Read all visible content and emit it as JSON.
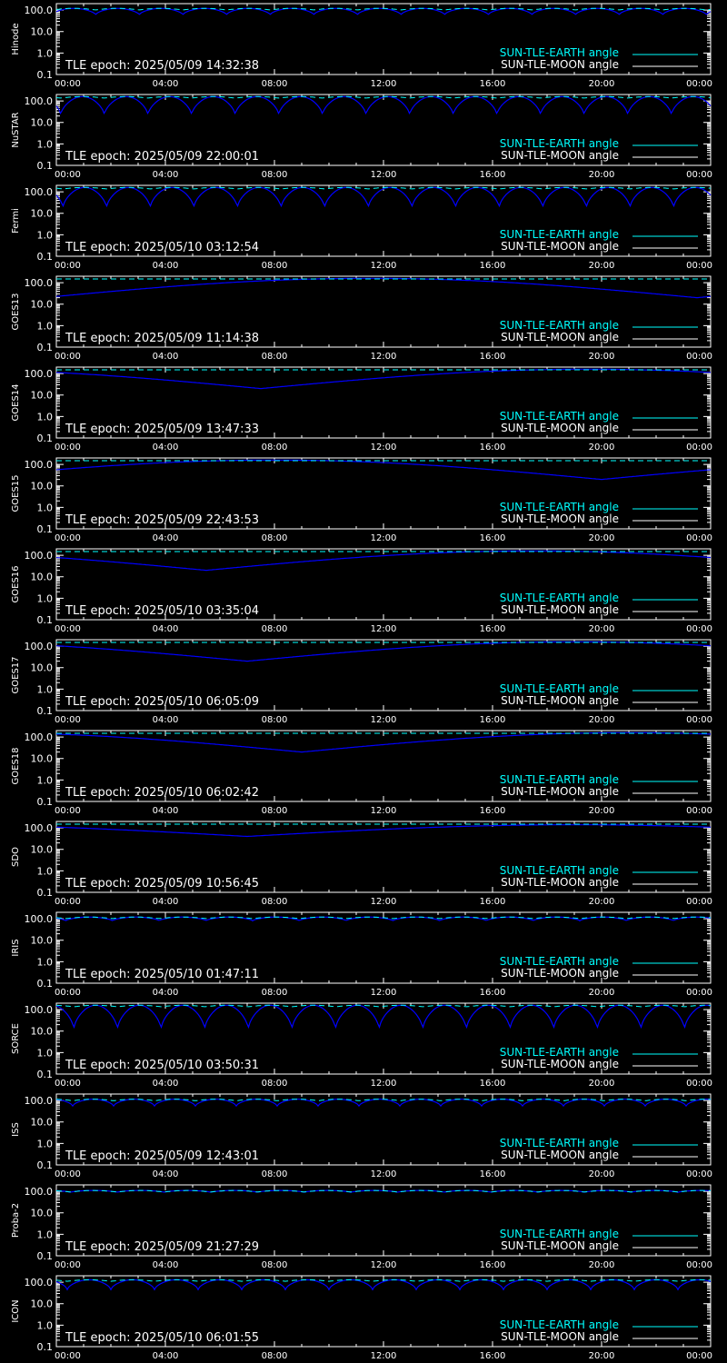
{
  "colors": {
    "background": "#000000",
    "axes": "#ffffff",
    "sun_earth": "#00ffff",
    "sun_moon": "#ffffff",
    "sep_curve": "#0000ff"
  },
  "legend": {
    "sun_earth_label": "SUN-TLE-EARTH angle",
    "sun_moon_label": "SUN-TLE-MOON angle"
  },
  "chart_data": [
    {
      "type": "line",
      "ylabel": "Hinode",
      "epoch": "TLE epoch: 2025/05/09 14:32:38",
      "ylim": [
        0.1,
        200
      ],
      "yscale": "log",
      "x_range_hours": [
        0,
        24
      ],
      "dips": {
        "count": 15,
        "min": 60,
        "max": 120,
        "phase": 0.6
      }
    },
    {
      "type": "line",
      "ylabel": "NuSTAR",
      "epoch": "TLE epoch: 2025/05/09 22:00:01",
      "ylim": [
        0.1,
        200
      ],
      "yscale": "log",
      "x_range_hours": [
        0,
        24
      ],
      "dips": {
        "count": 15,
        "min": 22,
        "max": 160,
        "phase": 0.4
      }
    },
    {
      "type": "line",
      "ylabel": "Fermi",
      "epoch": "TLE epoch: 2025/05/10 03:12:54",
      "ylim": [
        0.1,
        200
      ],
      "yscale": "log",
      "x_range_hours": [
        0,
        24
      ],
      "dips": {
        "count": 15,
        "min": 18,
        "max": 160,
        "phase": 0.35
      }
    },
    {
      "type": "line",
      "ylabel": "GOES13",
      "epoch": "TLE epoch: 2025/05/09 11:14:38",
      "ylim": [
        0.1,
        200
      ],
      "yscale": "log",
      "x_range_hours": [
        0,
        24
      ],
      "geo": {
        "min": 20,
        "max": 160,
        "peak_hour": 11.5
      }
    },
    {
      "type": "line",
      "ylabel": "GOES14",
      "epoch": "TLE epoch: 2025/05/09 13:47:33",
      "ylim": [
        0.1,
        200
      ],
      "yscale": "log",
      "x_range_hours": [
        0,
        24
      ],
      "geo": {
        "min": 20,
        "max": 160,
        "peak_hour": 19.5
      }
    },
    {
      "type": "line",
      "ylabel": "GOES15",
      "epoch": "TLE epoch: 2025/05/09 22:43:53",
      "ylim": [
        0.1,
        200
      ],
      "yscale": "log",
      "x_range_hours": [
        0,
        24
      ],
      "geo": {
        "min": 20,
        "max": 160,
        "peak_hour": 8
      }
    },
    {
      "type": "line",
      "ylabel": "GOES16",
      "epoch": "TLE epoch: 2025/05/10 03:35:04",
      "ylim": [
        0.1,
        200
      ],
      "yscale": "log",
      "x_range_hours": [
        0,
        24
      ],
      "geo": {
        "min": 20,
        "max": 160,
        "peak_hour": 17.5
      }
    },
    {
      "type": "line",
      "ylabel": "GOES17",
      "epoch": "TLE epoch: 2025/05/10 06:05:09",
      "ylim": [
        0.1,
        200
      ],
      "yscale": "log",
      "x_range_hours": [
        0,
        24
      ],
      "geo": {
        "min": 20,
        "max": 160,
        "peak_hour": 19
      }
    },
    {
      "type": "line",
      "ylabel": "GOES18",
      "epoch": "TLE epoch: 2025/05/10 06:02:42",
      "ylim": [
        0.1,
        200
      ],
      "yscale": "log",
      "x_range_hours": [
        0,
        24
      ],
      "geo": {
        "min": 20,
        "max": 160,
        "peak_hour": 21
      }
    },
    {
      "type": "line",
      "ylabel": "SDO",
      "epoch": "TLE epoch: 2025/05/09 10:56:45",
      "ylim": [
        0.1,
        200
      ],
      "yscale": "log",
      "x_range_hours": [
        0,
        24
      ],
      "geo": {
        "min": 40,
        "max": 140,
        "peak_hour": 19
      }
    },
    {
      "type": "line",
      "ylabel": "IRIS",
      "epoch": "TLE epoch: 2025/05/10 01:47:11",
      "ylim": [
        0.1,
        200
      ],
      "yscale": "log",
      "x_range_hours": [
        0,
        24
      ],
      "dips": {
        "count": 14,
        "min": 80,
        "max": 120,
        "phase": 0.3
      }
    },
    {
      "type": "line",
      "ylabel": "SORCE",
      "epoch": "TLE epoch: 2025/05/10 03:50:31",
      "ylim": [
        0.1,
        200
      ],
      "yscale": "log",
      "x_range_hours": [
        0,
        24
      ],
      "dips": {
        "count": 15,
        "min": 12,
        "max": 160,
        "phase": 0.1
      }
    },
    {
      "type": "line",
      "ylabel": "ISS",
      "epoch": "TLE epoch: 2025/05/09 12:43:01",
      "ylim": [
        0.1,
        200
      ],
      "yscale": "log",
      "x_range_hours": [
        0,
        24
      ],
      "dips": {
        "count": 16,
        "min": 55,
        "max": 115,
        "phase": 0.1
      }
    },
    {
      "type": "line",
      "ylabel": "Proba-2",
      "epoch": "TLE epoch: 2025/05/09 21:27:29",
      "ylim": [
        0.1,
        200
      ],
      "yscale": "log",
      "x_range_hours": [
        0,
        24
      ],
      "dips": {
        "count": 14,
        "min": 90,
        "max": 110,
        "phase": 0.2
      }
    },
    {
      "type": "line",
      "ylabel": "ICON",
      "epoch": "TLE epoch: 2025/05/10 06:01:55",
      "ylim": [
        0.1,
        200
      ],
      "yscale": "log",
      "x_range_hours": [
        0,
        24
      ],
      "dips": {
        "count": 15,
        "min": 45,
        "max": 130,
        "phase": 0.25
      }
    }
  ],
  "xticks": [
    "00:00",
    "04:00",
    "08:00",
    "12:00",
    "16:00",
    "20:00",
    "00:00"
  ],
  "yticks": [
    {
      "value": 0.1,
      "label": "0.1"
    },
    {
      "value": 1,
      "label": "1.0"
    },
    {
      "value": 10,
      "label": "10.0"
    },
    {
      "value": 100,
      "label": "100.0"
    }
  ]
}
